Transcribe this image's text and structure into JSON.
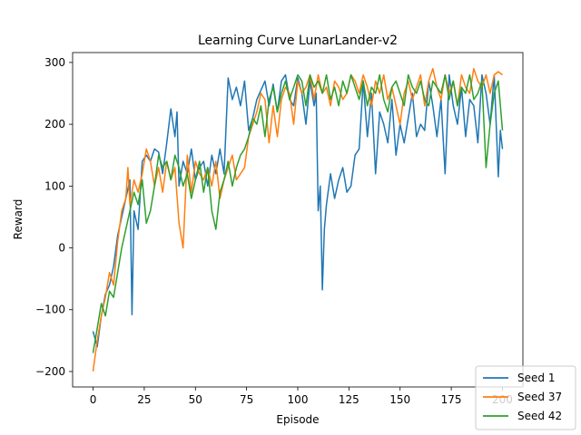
{
  "chart_data": {
    "type": "line",
    "title": "Learning Curve LunarLander-v2",
    "xlabel": "Episode",
    "ylabel": "Reward",
    "xlim": [
      -10,
      210
    ],
    "ylim": [
      -225,
      316
    ],
    "xticks": [
      0,
      25,
      50,
      75,
      100,
      125,
      150,
      175,
      200
    ],
    "yticks": [
      -200,
      -100,
      0,
      100,
      200,
      300
    ],
    "legend_position": "lower-right",
    "grid": false,
    "series": [
      {
        "name": "Seed 1",
        "color": "#1f77b4",
        "x": [
          0,
          2,
          4,
          6,
          8,
          10,
          12,
          14,
          16,
          18,
          19,
          20,
          22,
          24,
          26,
          28,
          30,
          32,
          34,
          36,
          38,
          40,
          41,
          42,
          44,
          46,
          48,
          50,
          52,
          54,
          56,
          58,
          60,
          62,
          64,
          66,
          68,
          70,
          72,
          74,
          76,
          78,
          80,
          82,
          84,
          86,
          88,
          90,
          92,
          94,
          96,
          98,
          100,
          102,
          104,
          106,
          108,
          109,
          110,
          111,
          112,
          113,
          114,
          116,
          118,
          120,
          122,
          124,
          126,
          128,
          130,
          132,
          134,
          136,
          138,
          140,
          142,
          144,
          146,
          148,
          150,
          152,
          154,
          156,
          158,
          160,
          162,
          164,
          166,
          168,
          170,
          172,
          174,
          176,
          178,
          180,
          182,
          184,
          186,
          188,
          190,
          192,
          194,
          196,
          198,
          199,
          200
        ],
        "values": [
          -135,
          -160,
          -110,
          -75,
          -60,
          -30,
          20,
          50,
          80,
          110,
          -108,
          60,
          30,
          140,
          150,
          140,
          160,
          155,
          120,
          170,
          225,
          180,
          220,
          100,
          140,
          120,
          160,
          110,
          130,
          140,
          100,
          150,
          120,
          160,
          120,
          275,
          240,
          260,
          230,
          270,
          190,
          210,
          240,
          255,
          270,
          230,
          265,
          220,
          270,
          280,
          240,
          230,
          275,
          250,
          200,
          270,
          230,
          250,
          60,
          100,
          -68,
          30,
          70,
          120,
          80,
          110,
          130,
          90,
          100,
          150,
          160,
          270,
          180,
          250,
          120,
          220,
          200,
          170,
          240,
          150,
          200,
          170,
          210,
          250,
          180,
          200,
          190,
          270,
          230,
          180,
          240,
          120,
          280,
          230,
          200,
          260,
          180,
          240,
          230,
          170,
          280,
          250,
          200,
          280,
          115,
          190,
          160
        ]
      },
      {
        "name": "Seed 37",
        "color": "#ff7f0e",
        "x": [
          0,
          2,
          4,
          6,
          8,
          10,
          12,
          14,
          16,
          17,
          18,
          20,
          22,
          24,
          26,
          28,
          30,
          32,
          34,
          36,
          38,
          40,
          42,
          44,
          46,
          48,
          50,
          52,
          54,
          56,
          58,
          60,
          62,
          64,
          66,
          68,
          70,
          72,
          74,
          76,
          78,
          80,
          82,
          84,
          86,
          88,
          90,
          92,
          94,
          96,
          98,
          100,
          102,
          104,
          106,
          108,
          110,
          112,
          114,
          116,
          118,
          120,
          122,
          124,
          126,
          128,
          130,
          132,
          134,
          136,
          138,
          140,
          142,
          144,
          146,
          148,
          150,
          152,
          154,
          156,
          158,
          160,
          162,
          164,
          166,
          168,
          170,
          172,
          174,
          176,
          178,
          180,
          182,
          184,
          186,
          188,
          190,
          192,
          194,
          196,
          198,
          200
        ],
        "values": [
          -200,
          -150,
          -110,
          -80,
          -40,
          -60,
          10,
          60,
          80,
          130,
          70,
          110,
          90,
          120,
          160,
          140,
          100,
          130,
          90,
          140,
          110,
          130,
          40,
          0,
          150,
          90,
          140,
          120,
          110,
          130,
          100,
          140,
          80,
          110,
          130,
          150,
          110,
          120,
          130,
          180,
          200,
          220,
          250,
          240,
          170,
          230,
          180,
          240,
          260,
          250,
          200,
          270,
          250,
          260,
          280,
          240,
          280,
          250,
          260,
          230,
          270,
          260,
          240,
          250,
          280,
          270,
          250,
          280,
          260,
          230,
          270,
          250,
          280,
          240,
          260,
          230,
          200,
          250,
          270,
          240,
          260,
          280,
          230,
          270,
          290,
          260,
          240,
          280,
          250,
          270,
          230,
          280,
          260,
          250,
          290,
          270,
          260,
          280,
          250,
          280,
          285,
          280
        ]
      },
      {
        "name": "Seed 42",
        "color": "#2ca02c",
        "x": [
          0,
          2,
          4,
          6,
          8,
          10,
          12,
          14,
          16,
          18,
          20,
          22,
          24,
          26,
          28,
          30,
          32,
          34,
          36,
          38,
          40,
          42,
          44,
          46,
          48,
          50,
          52,
          54,
          56,
          58,
          60,
          62,
          64,
          66,
          68,
          70,
          72,
          74,
          76,
          78,
          80,
          82,
          84,
          86,
          88,
          90,
          92,
          94,
          96,
          98,
          100,
          102,
          104,
          106,
          108,
          110,
          112,
          114,
          116,
          118,
          120,
          122,
          124,
          126,
          128,
          130,
          132,
          134,
          136,
          138,
          140,
          142,
          144,
          146,
          148,
          150,
          152,
          154,
          156,
          158,
          160,
          162,
          164,
          166,
          168,
          170,
          172,
          174,
          176,
          178,
          180,
          182,
          184,
          186,
          188,
          190,
          192,
          194,
          196,
          198,
          200
        ],
        "values": [
          -170,
          -130,
          -90,
          -110,
          -70,
          -80,
          -40,
          0,
          30,
          60,
          90,
          70,
          110,
          40,
          60,
          100,
          150,
          130,
          140,
          110,
          150,
          130,
          100,
          120,
          80,
          110,
          140,
          90,
          130,
          60,
          30,
          90,
          110,
          140,
          100,
          130,
          150,
          160,
          180,
          210,
          200,
          230,
          180,
          240,
          260,
          220,
          250,
          270,
          240,
          260,
          280,
          270,
          230,
          280,
          260,
          270,
          250,
          280,
          240,
          260,
          230,
          270,
          250,
          280,
          260,
          240,
          270,
          230,
          260,
          250,
          280,
          240,
          220,
          260,
          270,
          250,
          230,
          280,
          260,
          250,
          270,
          240,
          230,
          270,
          260,
          250,
          280,
          240,
          270,
          230,
          260,
          250,
          280,
          240,
          250,
          270,
          130,
          200,
          250,
          270,
          190
        ]
      }
    ]
  }
}
